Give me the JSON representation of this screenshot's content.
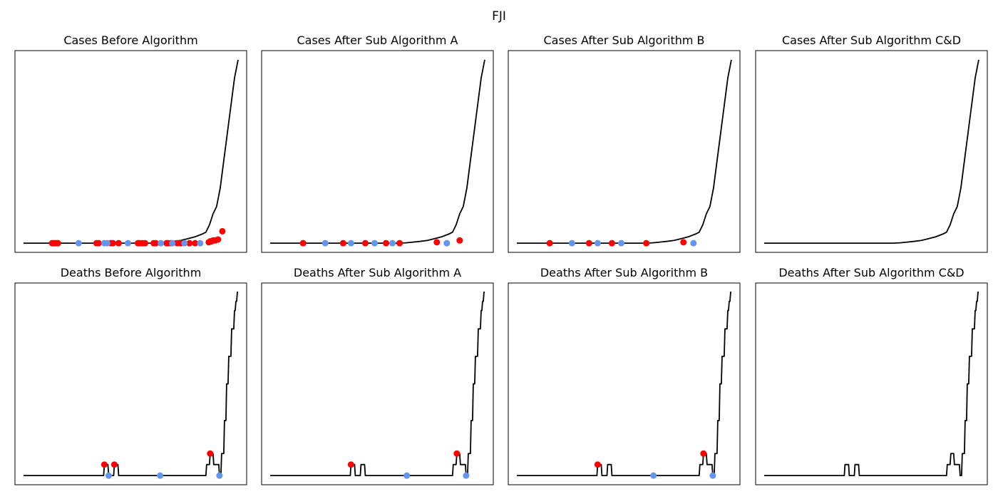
{
  "suptitle": "FJI",
  "colors": {
    "line": "#000000",
    "red_marker": "#ff0000",
    "blue_marker": "#6495ed"
  },
  "chart_data": [
    {
      "type": "line",
      "title": "Cases Before Algorithm",
      "x": [
        0,
        50,
        100,
        120,
        140,
        160,
        170,
        180,
        190,
        195,
        200,
        210,
        220,
        230,
        240,
        250,
        255,
        260,
        265,
        270,
        275,
        280,
        285,
        290,
        295,
        300
      ],
      "y": [
        0,
        0,
        0,
        0,
        0,
        0,
        0,
        0,
        0.2,
        0.4,
        0.6,
        1,
        1.5,
        2.5,
        3.5,
        5,
        6,
        10,
        16,
        20,
        30,
        45,
        60,
        75,
        90,
        100
      ],
      "xlim": [
        -12,
        312
      ],
      "ylim": [
        -5,
        105
      ],
      "red_points": [
        [
          40,
          0
        ],
        [
          42,
          0
        ],
        [
          44,
          0
        ],
        [
          46,
          0
        ],
        [
          48,
          0
        ],
        [
          102,
          0
        ],
        [
          105,
          0
        ],
        [
          122,
          0
        ],
        [
          125,
          0
        ],
        [
          133,
          0
        ],
        [
          160,
          0
        ],
        [
          162,
          0
        ],
        [
          166,
          0
        ],
        [
          170,
          0
        ],
        [
          182,
          0
        ],
        [
          185,
          0
        ],
        [
          200,
          0
        ],
        [
          202,
          0
        ],
        [
          206,
          0
        ],
        [
          215,
          0
        ],
        [
          220,
          0
        ],
        [
          232,
          0
        ],
        [
          240,
          0
        ],
        [
          259,
          0.5
        ],
        [
          261,
          1
        ],
        [
          263,
          1
        ],
        [
          265,
          1.5
        ],
        [
          268,
          1.5
        ],
        [
          272,
          2
        ],
        [
          278,
          6.5
        ]
      ],
      "blue_points": [
        [
          77,
          0
        ],
        [
          113,
          0
        ],
        [
          117,
          0
        ],
        [
          146,
          0
        ],
        [
          192,
          0
        ],
        [
          208,
          0
        ],
        [
          225,
          0
        ],
        [
          247,
          0
        ]
      ]
    },
    {
      "type": "line",
      "title": "Cases After Sub Algorithm A",
      "x": [
        0,
        50,
        100,
        120,
        140,
        160,
        170,
        180,
        190,
        195,
        200,
        210,
        220,
        230,
        240,
        250,
        255,
        260,
        265,
        270,
        275,
        280,
        285,
        290,
        295,
        300
      ],
      "y": [
        0,
        0,
        0,
        0,
        0,
        0,
        0,
        0,
        0.2,
        0.4,
        0.6,
        1,
        1.5,
        2.5,
        3.5,
        5,
        6,
        10,
        16,
        20,
        30,
        45,
        60,
        75,
        90,
        100
      ],
      "xlim": [
        -12,
        312
      ],
      "ylim": [
        -5,
        105
      ],
      "red_points": [
        [
          46,
          0
        ],
        [
          102,
          0
        ],
        [
          133,
          0
        ],
        [
          162,
          0
        ],
        [
          181,
          0
        ],
        [
          233,
          0.5
        ],
        [
          265,
          1.5
        ]
      ],
      "blue_points": [
        [
          77,
          0
        ],
        [
          113,
          0
        ],
        [
          146,
          0
        ],
        [
          171,
          0
        ],
        [
          247,
          0
        ]
      ]
    },
    {
      "type": "line",
      "title": "Cases After Sub Algorithm B",
      "x": [
        0,
        50,
        100,
        120,
        140,
        160,
        170,
        180,
        190,
        195,
        200,
        210,
        220,
        230,
        240,
        250,
        255,
        260,
        265,
        270,
        275,
        280,
        285,
        290,
        295,
        300
      ],
      "y": [
        0,
        0,
        0,
        0,
        0,
        0,
        0,
        0,
        0.2,
        0.4,
        0.6,
        1,
        1.5,
        2.5,
        3.5,
        5,
        6,
        10,
        16,
        20,
        30,
        45,
        60,
        75,
        90,
        100
      ],
      "xlim": [
        -12,
        312
      ],
      "ylim": [
        -5,
        105
      ],
      "red_points": [
        [
          46,
          0
        ],
        [
          101,
          0
        ],
        [
          133,
          0
        ],
        [
          181,
          0
        ],
        [
          233,
          0.5
        ]
      ],
      "blue_points": [
        [
          77,
          0
        ],
        [
          113,
          0
        ],
        [
          146,
          0
        ],
        [
          247,
          0
        ]
      ]
    },
    {
      "type": "line",
      "title": "Cases After Sub Algorithm C&D",
      "x": [
        0,
        50,
        100,
        120,
        140,
        160,
        170,
        180,
        190,
        195,
        200,
        210,
        220,
        230,
        240,
        250,
        255,
        260,
        265,
        270,
        275,
        280,
        285,
        290,
        295,
        300
      ],
      "y": [
        0,
        0,
        0,
        0,
        0,
        0,
        0,
        0,
        0.2,
        0.4,
        0.6,
        1,
        1.5,
        2.5,
        3.5,
        5,
        6,
        10,
        16,
        20,
        30,
        45,
        60,
        75,
        90,
        100
      ],
      "xlim": [
        -12,
        312
      ],
      "ylim": [
        -5,
        105
      ],
      "red_points": [],
      "blue_points": []
    },
    {
      "type": "line",
      "title": "Deaths Before Algorithm",
      "x": [
        0,
        112,
        113,
        118,
        119,
        126,
        127,
        132,
        133,
        255,
        256,
        260,
        261,
        265,
        266,
        273,
        274,
        276,
        277,
        280,
        281,
        283,
        284,
        286,
        287,
        290,
        291,
        294,
        295,
        296,
        297,
        298,
        299,
        300
      ],
      "y": [
        0,
        0,
        6,
        6,
        0,
        0,
        6,
        6,
        0,
        0,
        6,
        6,
        12,
        12,
        6,
        6,
        0,
        0,
        12,
        12,
        30,
        30,
        50,
        50,
        65,
        65,
        80,
        80,
        90,
        90,
        95,
        95,
        100,
        100
      ],
      "xlim": [
        -12,
        312
      ],
      "ylim": [
        -5,
        105
      ],
      "red_points": [
        [
          113,
          6
        ],
        [
          127,
          6
        ],
        [
          261,
          12
        ]
      ],
      "blue_points": [
        [
          119,
          0
        ],
        [
          191,
          0
        ],
        [
          274,
          0
        ]
      ]
    },
    {
      "type": "line",
      "title": "Deaths After Sub Algorithm A",
      "x": [
        0,
        112,
        113,
        118,
        119,
        126,
        127,
        132,
        133,
        255,
        256,
        260,
        261,
        265,
        266,
        273,
        274,
        276,
        277,
        280,
        281,
        283,
        284,
        286,
        287,
        290,
        291,
        294,
        295,
        296,
        297,
        298,
        299,
        300
      ],
      "y": [
        0,
        0,
        6,
        6,
        0,
        0,
        6,
        6,
        0,
        0,
        6,
        6,
        12,
        12,
        6,
        6,
        0,
        0,
        12,
        12,
        30,
        30,
        50,
        50,
        65,
        65,
        80,
        80,
        90,
        90,
        95,
        95,
        100,
        100
      ],
      "xlim": [
        -12,
        312
      ],
      "ylim": [
        -5,
        105
      ],
      "red_points": [
        [
          113,
          6
        ],
        [
          261,
          12
        ]
      ],
      "blue_points": [
        [
          191,
          0
        ],
        [
          274,
          0
        ]
      ]
    },
    {
      "type": "line",
      "title": "Deaths After Sub Algorithm B",
      "x": [
        0,
        112,
        113,
        118,
        119,
        126,
        127,
        132,
        133,
        255,
        256,
        260,
        261,
        265,
        266,
        273,
        274,
        276,
        277,
        280,
        281,
        283,
        284,
        286,
        287,
        290,
        291,
        294,
        295,
        296,
        297,
        298,
        299,
        300
      ],
      "y": [
        0,
        0,
        6,
        6,
        0,
        0,
        6,
        6,
        0,
        0,
        6,
        6,
        12,
        12,
        6,
        6,
        0,
        0,
        12,
        12,
        30,
        30,
        50,
        50,
        65,
        65,
        80,
        80,
        90,
        90,
        95,
        95,
        100,
        100
      ],
      "xlim": [
        -12,
        312
      ],
      "ylim": [
        -5,
        105
      ],
      "red_points": [
        [
          113,
          6
        ],
        [
          261,
          12
        ]
      ],
      "blue_points": [
        [
          191,
          0
        ],
        [
          274,
          0
        ]
      ]
    },
    {
      "type": "line",
      "title": "Deaths After Sub Algorithm C&D",
      "x": [
        0,
        112,
        113,
        118,
        119,
        126,
        127,
        132,
        133,
        255,
        256,
        260,
        261,
        265,
        266,
        273,
        274,
        276,
        277,
        280,
        281,
        283,
        284,
        286,
        287,
        290,
        291,
        294,
        295,
        296,
        297,
        298,
        299,
        300
      ],
      "y": [
        0,
        0,
        6,
        6,
        0,
        0,
        6,
        6,
        0,
        0,
        6,
        6,
        12,
        12,
        6,
        6,
        0,
        0,
        12,
        12,
        30,
        30,
        50,
        50,
        65,
        65,
        80,
        80,
        90,
        90,
        95,
        95,
        100,
        100
      ],
      "xlim": [
        -12,
        312
      ],
      "ylim": [
        -5,
        105
      ],
      "red_points": [],
      "blue_points": []
    }
  ]
}
